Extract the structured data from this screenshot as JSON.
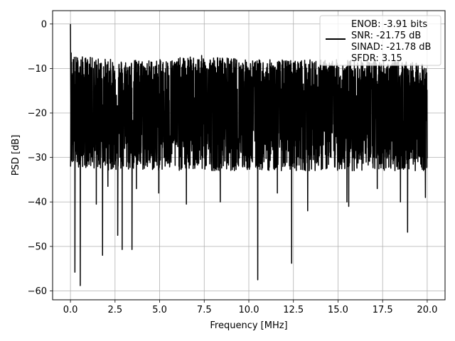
{
  "chart_data": {
    "type": "line",
    "title": "",
    "xlabel": "Frequency [MHz]",
    "ylabel": "PSD [dB]",
    "xlim": [
      -1.0,
      21.0
    ],
    "ylim": [
      -62.0,
      3.0
    ],
    "x_ticks": [
      0.0,
      2.5,
      5.0,
      7.5,
      10.0,
      12.5,
      15.0,
      17.5,
      20.0
    ],
    "x_tick_labels": [
      "0.0",
      "2.5",
      "5.0",
      "7.5",
      "10.0",
      "12.5",
      "15.0",
      "17.5",
      "20.0"
    ],
    "y_ticks": [
      0,
      -10,
      -20,
      -30,
      -40,
      -50,
      -60
    ],
    "y_tick_labels": [
      "0",
      "−10",
      "−20",
      "−30",
      "−40",
      "−50",
      "−60"
    ],
    "grid": true,
    "legend_position": "top-right",
    "legend_entries": [
      "ENOB: -3.91 bits",
      "SNR: -21.75 dB",
      "SINAD: -21.78 dB",
      "SFDR: 3.15"
    ],
    "series_color": "#000000",
    "series": [
      {
        "x_range": [
          0.0,
          20.0
        ],
        "peak": [
          0.0,
          0.0
        ],
        "envelope": {
          "upper": [
            [
              0.0,
              -7
            ],
            [
              2.5,
              -8
            ],
            [
              5.0,
              -8
            ],
            [
              7.5,
              -7
            ],
            [
              10.0,
              -8
            ],
            [
              12.5,
              -8
            ],
            [
              15.0,
              -8
            ],
            [
              17.5,
              -8
            ],
            [
              20.0,
              -9
            ]
          ],
          "median": -20,
          "lower": [
            [
              0.0,
              -32
            ],
            [
              2.5,
              -33
            ],
            [
              5.0,
              -33
            ],
            [
              7.5,
              -33
            ],
            [
              10.0,
              -33
            ],
            [
              12.5,
              -33
            ],
            [
              15.0,
              -33
            ],
            [
              17.5,
              -33
            ],
            [
              20.0,
              -33
            ]
          ]
        },
        "dips": [
          [
            0.25,
            -55.8
          ],
          [
            0.55,
            -58.8
          ],
          [
            1.45,
            -40.5
          ],
          [
            1.8,
            -52.0
          ],
          [
            2.1,
            -36.5
          ],
          [
            2.65,
            -47.5
          ],
          [
            2.9,
            -50.7
          ],
          [
            3.45,
            -50.7
          ],
          [
            3.7,
            -37.0
          ],
          [
            4.95,
            -38.0
          ],
          [
            6.5,
            -40.5
          ],
          [
            8.4,
            -40.0
          ],
          [
            10.5,
            -57.5
          ],
          [
            11.6,
            -38.0
          ],
          [
            12.4,
            -53.8
          ],
          [
            13.3,
            -42.0
          ],
          [
            15.5,
            -40.0
          ],
          [
            15.6,
            -41.0
          ],
          [
            17.2,
            -37.0
          ],
          [
            18.5,
            -40.0
          ],
          [
            18.9,
            -46.8
          ],
          [
            19.9,
            -39.0
          ]
        ]
      }
    ]
  }
}
